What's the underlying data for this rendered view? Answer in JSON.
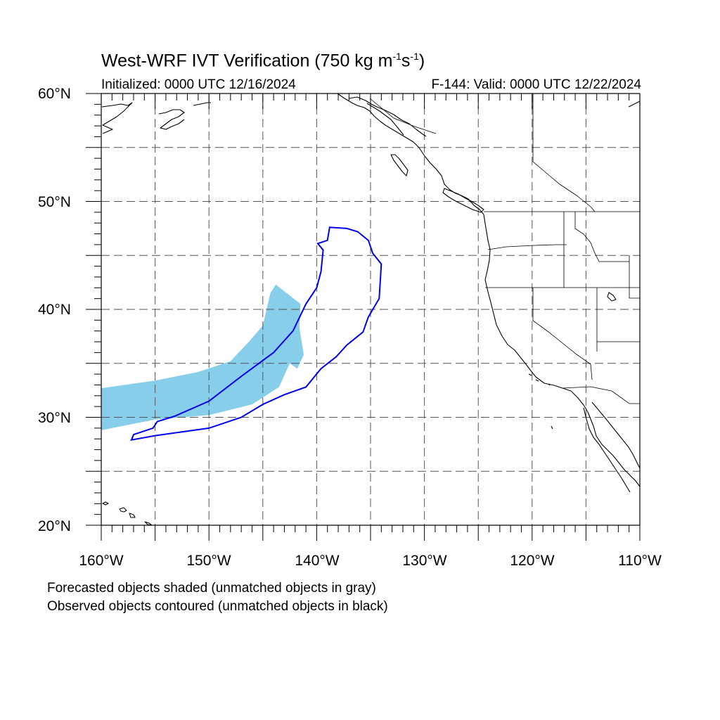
{
  "header": {
    "title_text": "West-WRF IVT Verification (750 kg m",
    "title_sup1": "-1",
    "title_s": "s",
    "title_sup2": "-1",
    "title_close": ")",
    "initialized": "Initialized: 0000 UTC 12/16/2024",
    "valid": "F-144: Valid: 0000 UTC 12/22/2024"
  },
  "axes": {
    "lat_labels": [
      "60°N",
      "50°N",
      "40°N",
      "30°N",
      "20°N"
    ],
    "lon_labels": [
      "160°W",
      "150°W",
      "140°W",
      "130°W",
      "120°W",
      "110°W"
    ],
    "lat_range": [
      20,
      60
    ],
    "lon_range": [
      -160,
      -110
    ],
    "grid": "dashed every 5 degrees"
  },
  "legend": {
    "note1": "Forecasted objects shaded (unmatched objects in gray)",
    "note2": "Observed objects contoured (unmatched objects in black)"
  },
  "colors": {
    "forecast_fill": "#87ceeb",
    "observed_contour": "#0000ee",
    "coastline": "#000000",
    "grid": "#555555"
  },
  "map_data": {
    "forecast_object": [
      [
        -160,
        32.7
      ],
      [
        -155,
        33.4
      ],
      [
        -151,
        34.2
      ],
      [
        -148,
        35.2
      ],
      [
        -146.3,
        37
      ],
      [
        -145,
        38.5
      ],
      [
        -144.3,
        41.5
      ],
      [
        -143.8,
        42.3
      ],
      [
        -141.5,
        40.5
      ],
      [
        -141.6,
        38.3
      ],
      [
        -141.2,
        35.8
      ],
      [
        -141.8,
        34.5
      ],
      [
        -142.5,
        35
      ],
      [
        -143.5,
        32.8
      ],
      [
        -146,
        31.2
      ],
      [
        -150,
        30.2
      ],
      [
        -155,
        29.8
      ],
      [
        -160,
        28.8
      ]
    ],
    "observed_object": [
      [
        -157.2,
        27.9
      ],
      [
        -155,
        28.3
      ],
      [
        -150,
        29
      ],
      [
        -147,
        30
      ],
      [
        -145,
        31.2
      ],
      [
        -143,
        32.1
      ],
      [
        -141,
        32.8
      ],
      [
        -139.6,
        34.5
      ],
      [
        -138.2,
        35.6
      ],
      [
        -137.2,
        36.7
      ],
      [
        -135.7,
        37.9
      ],
      [
        -135.2,
        39.3
      ],
      [
        -134.2,
        41
      ],
      [
        -134,
        44.2
      ],
      [
        -134.8,
        45.2
      ],
      [
        -135.2,
        46.4
      ],
      [
        -136.2,
        47.2
      ],
      [
        -137.2,
        47.5
      ],
      [
        -138.8,
        47.6
      ],
      [
        -139,
        46.4
      ],
      [
        -139.9,
        46.1
      ],
      [
        -139.4,
        45.5
      ],
      [
        -139.6,
        43.5
      ],
      [
        -140,
        42
      ],
      [
        -141,
        40.5
      ],
      [
        -142.2,
        38
      ],
      [
        -144,
        36
      ],
      [
        -147,
        33.8
      ],
      [
        -150,
        31.5
      ],
      [
        -153.2,
        30.1
      ],
      [
        -154.8,
        29.6
      ],
      [
        -155.2,
        29
      ],
      [
        -157,
        28.4
      ]
    ]
  }
}
